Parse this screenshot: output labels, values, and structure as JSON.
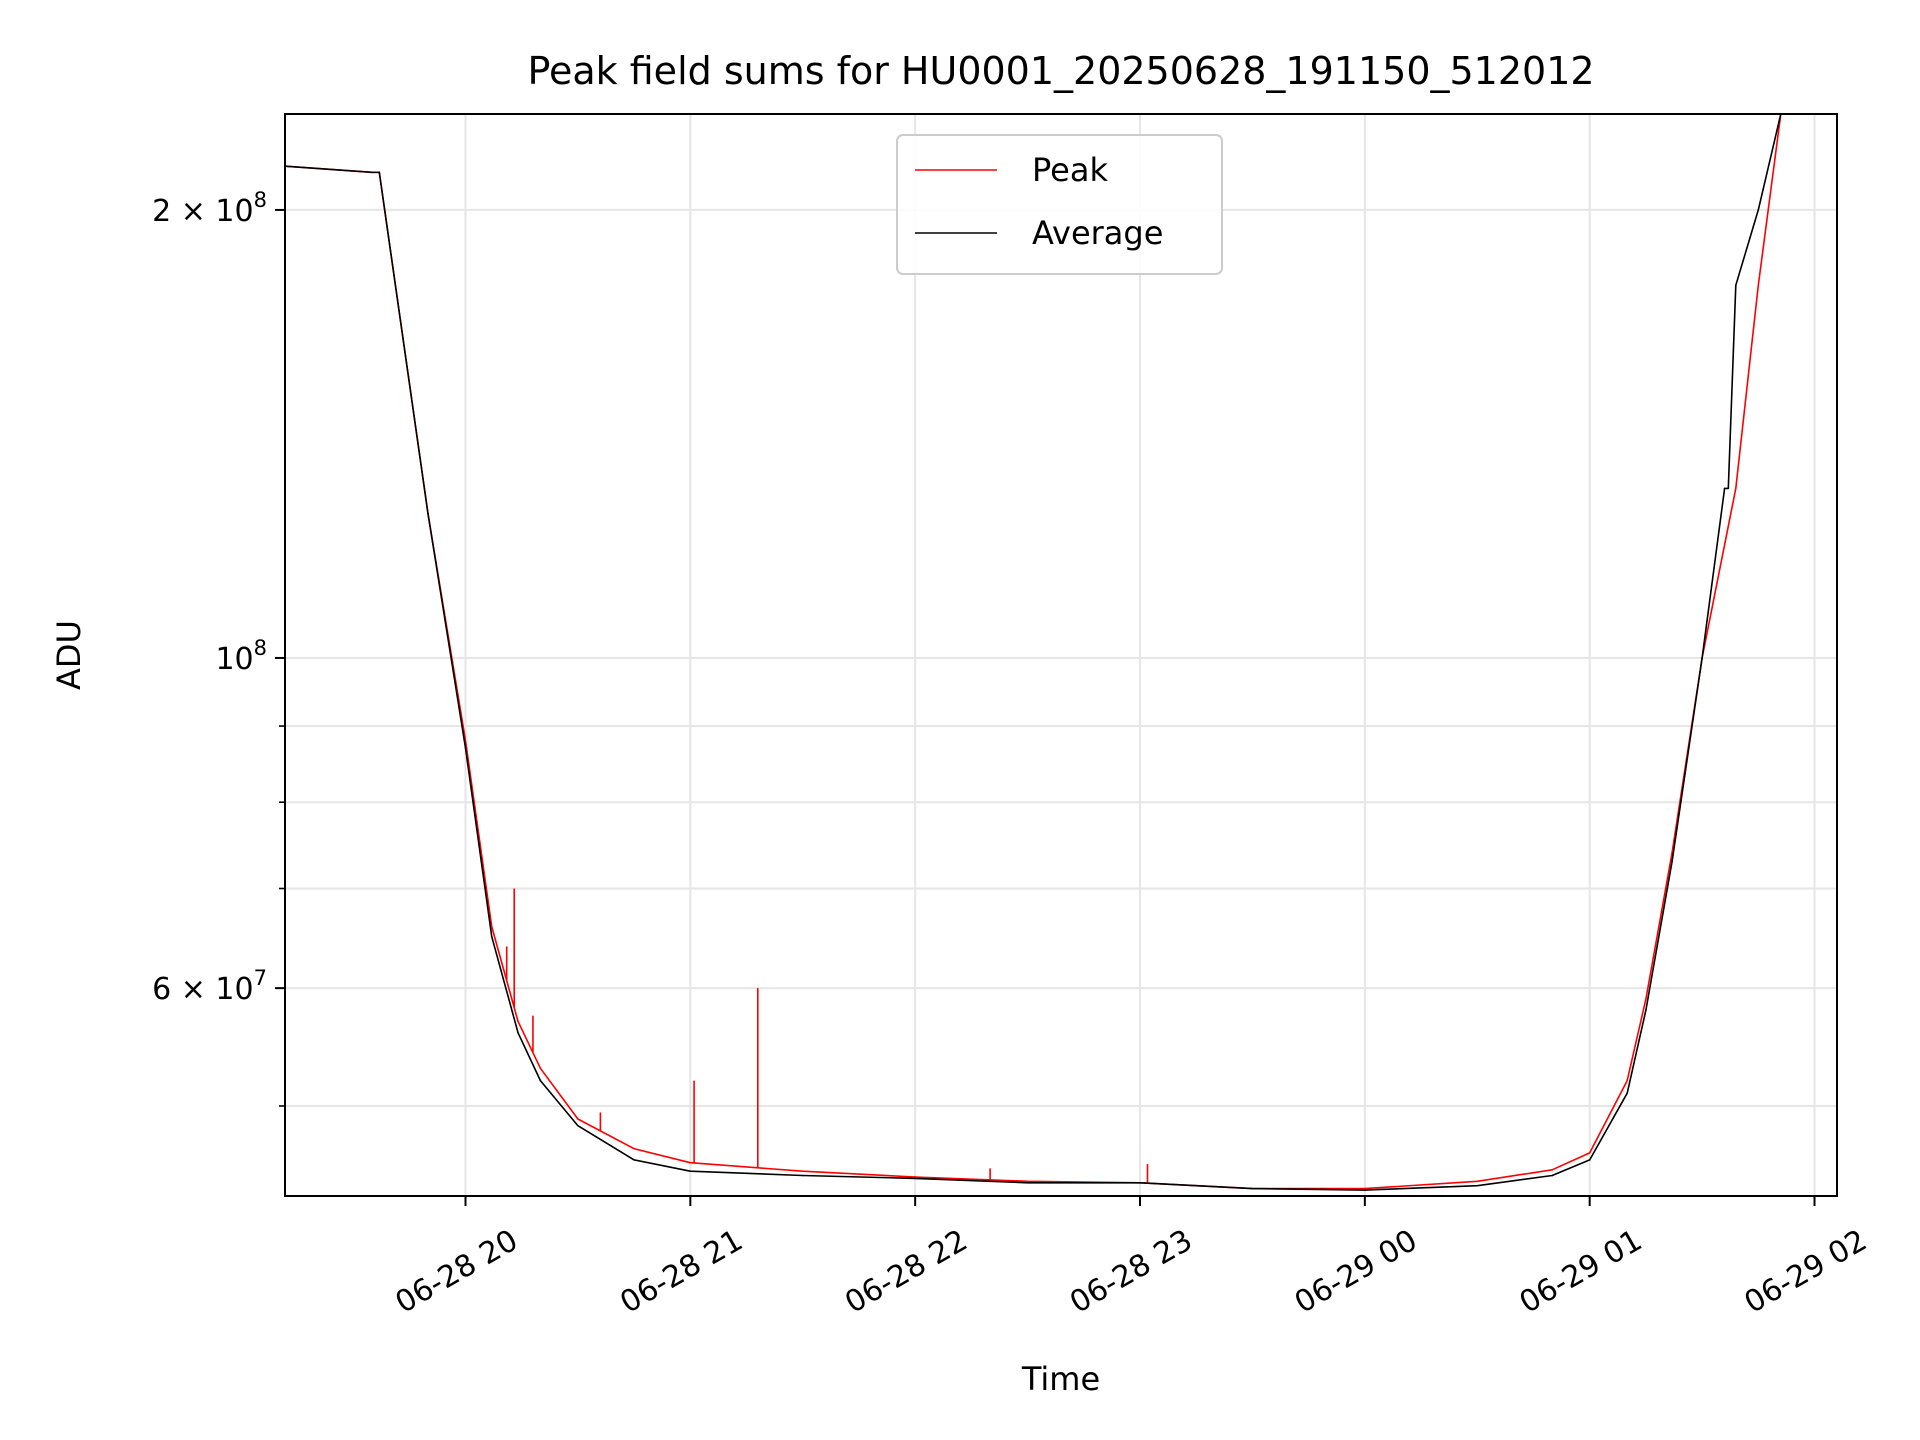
{
  "chart_data": {
    "type": "line",
    "title": "Peak field sums for HU0001_20250628_191150_512012",
    "xlabel": "Time",
    "ylabel": "ADU",
    "y_scale": "log",
    "ylim": [
      43500000,
      232000000
    ],
    "xlim": [
      "2025-06-28 19:11:50",
      "2025-06-29 02:06:00"
    ],
    "grid": true,
    "legend_position": "top-center",
    "x_ticks": [
      {
        "t": "2025-06-28 20:00",
        "label": "06-28 20"
      },
      {
        "t": "2025-06-28 21:00",
        "label": "06-28 21"
      },
      {
        "t": "2025-06-28 22:00",
        "label": "06-28 22"
      },
      {
        "t": "2025-06-28 23:00",
        "label": "06-28 23"
      },
      {
        "t": "2025-06-29 00:00",
        "label": "06-29 00"
      },
      {
        "t": "2025-06-29 01:00",
        "label": "06-29 01"
      },
      {
        "t": "2025-06-29 02:00",
        "label": "06-29 02"
      }
    ],
    "y_major_ticks": [
      {
        "value": 200000000,
        "label_base": "2 × 10",
        "label_exp": "8"
      },
      {
        "value": 100000000,
        "label_base": "10",
        "label_exp": "8"
      },
      {
        "value": 60000000,
        "label_base": "6 × 10",
        "label_exp": "7"
      }
    ],
    "y_minor_ticks": [
      50000000,
      70000000,
      80000000,
      90000000
    ],
    "series": [
      {
        "name": "Peak",
        "color": "#ff0000",
        "x": [
          "2025-06-28 19:11:50",
          "2025-06-28 19:35",
          "2025-06-28 19:37",
          "2025-06-28 19:50",
          "2025-06-28 20:00",
          "2025-06-28 20:07",
          "2025-06-28 20:14",
          "2025-06-28 20:20",
          "2025-06-28 20:30",
          "2025-06-28 20:45",
          "2025-06-28 21:00",
          "2025-06-28 21:30",
          "2025-06-28 22:00",
          "2025-06-28 22:30",
          "2025-06-28 23:00",
          "2025-06-28 23:30",
          "2025-06-29 00:00",
          "2025-06-29 00:30",
          "2025-06-29 00:50",
          "2025-06-29 01:00",
          "2025-06-29 01:10",
          "2025-06-29 01:15",
          "2025-06-29 01:22",
          "2025-06-29 01:30",
          "2025-06-29 01:39",
          "2025-06-29 01:45",
          "2025-06-29 01:51"
        ],
        "y": [
          214000000,
          212000000,
          212000000,
          125000000,
          88000000,
          66000000,
          57000000,
          53000000,
          49000000,
          46800000,
          45800000,
          45200000,
          44800000,
          44500000,
          44400000,
          44000000,
          44000000,
          44500000,
          45300000,
          46500000,
          52000000,
          59000000,
          74000000,
          100000000,
          130000000,
          178000000,
          232000000
        ],
        "spikes": [
          {
            "x": "2025-06-28 20:13",
            "y": 70000000
          },
          {
            "x": "2025-06-28 20:11",
            "y": 64000000
          },
          {
            "x": "2025-06-28 20:18",
            "y": 57500000
          },
          {
            "x": "2025-06-28 20:36",
            "y": 49500000
          },
          {
            "x": "2025-06-28 21:01",
            "y": 52000000
          },
          {
            "x": "2025-06-28 21:18",
            "y": 60000000
          },
          {
            "x": "2025-06-28 22:20",
            "y": 45400000
          },
          {
            "x": "2025-06-28 23:02",
            "y": 45700000
          }
        ]
      },
      {
        "name": "Average",
        "color": "#000000",
        "x": [
          "2025-06-28 19:11:50",
          "2025-06-28 19:35",
          "2025-06-28 19:37",
          "2025-06-28 19:50",
          "2025-06-28 20:00",
          "2025-06-28 20:07",
          "2025-06-28 20:14",
          "2025-06-28 20:20",
          "2025-06-28 20:30",
          "2025-06-28 20:45",
          "2025-06-28 21:00",
          "2025-06-28 21:30",
          "2025-06-28 22:00",
          "2025-06-28 22:30",
          "2025-06-28 23:00",
          "2025-06-28 23:30",
          "2025-06-29 00:00",
          "2025-06-29 00:30",
          "2025-06-29 00:50",
          "2025-06-29 01:00",
          "2025-06-29 01:10",
          "2025-06-29 01:15",
          "2025-06-29 01:22",
          "2025-06-29 01:30",
          "2025-06-29 01:36",
          "2025-06-29 01:37",
          "2025-06-29 01:39",
          "2025-06-29 01:45",
          "2025-06-29 01:51"
        ],
        "y": [
          214000000,
          212000000,
          212000000,
          125000000,
          87000000,
          65000000,
          56000000,
          52000000,
          48500000,
          46000000,
          45200000,
          44900000,
          44700000,
          44400000,
          44400000,
          44000000,
          43900000,
          44200000,
          44900000,
          46000000,
          51000000,
          58000000,
          73000000,
          100000000,
          130000000,
          130000000,
          178000000,
          200000000,
          232000000
        ]
      }
    ]
  }
}
